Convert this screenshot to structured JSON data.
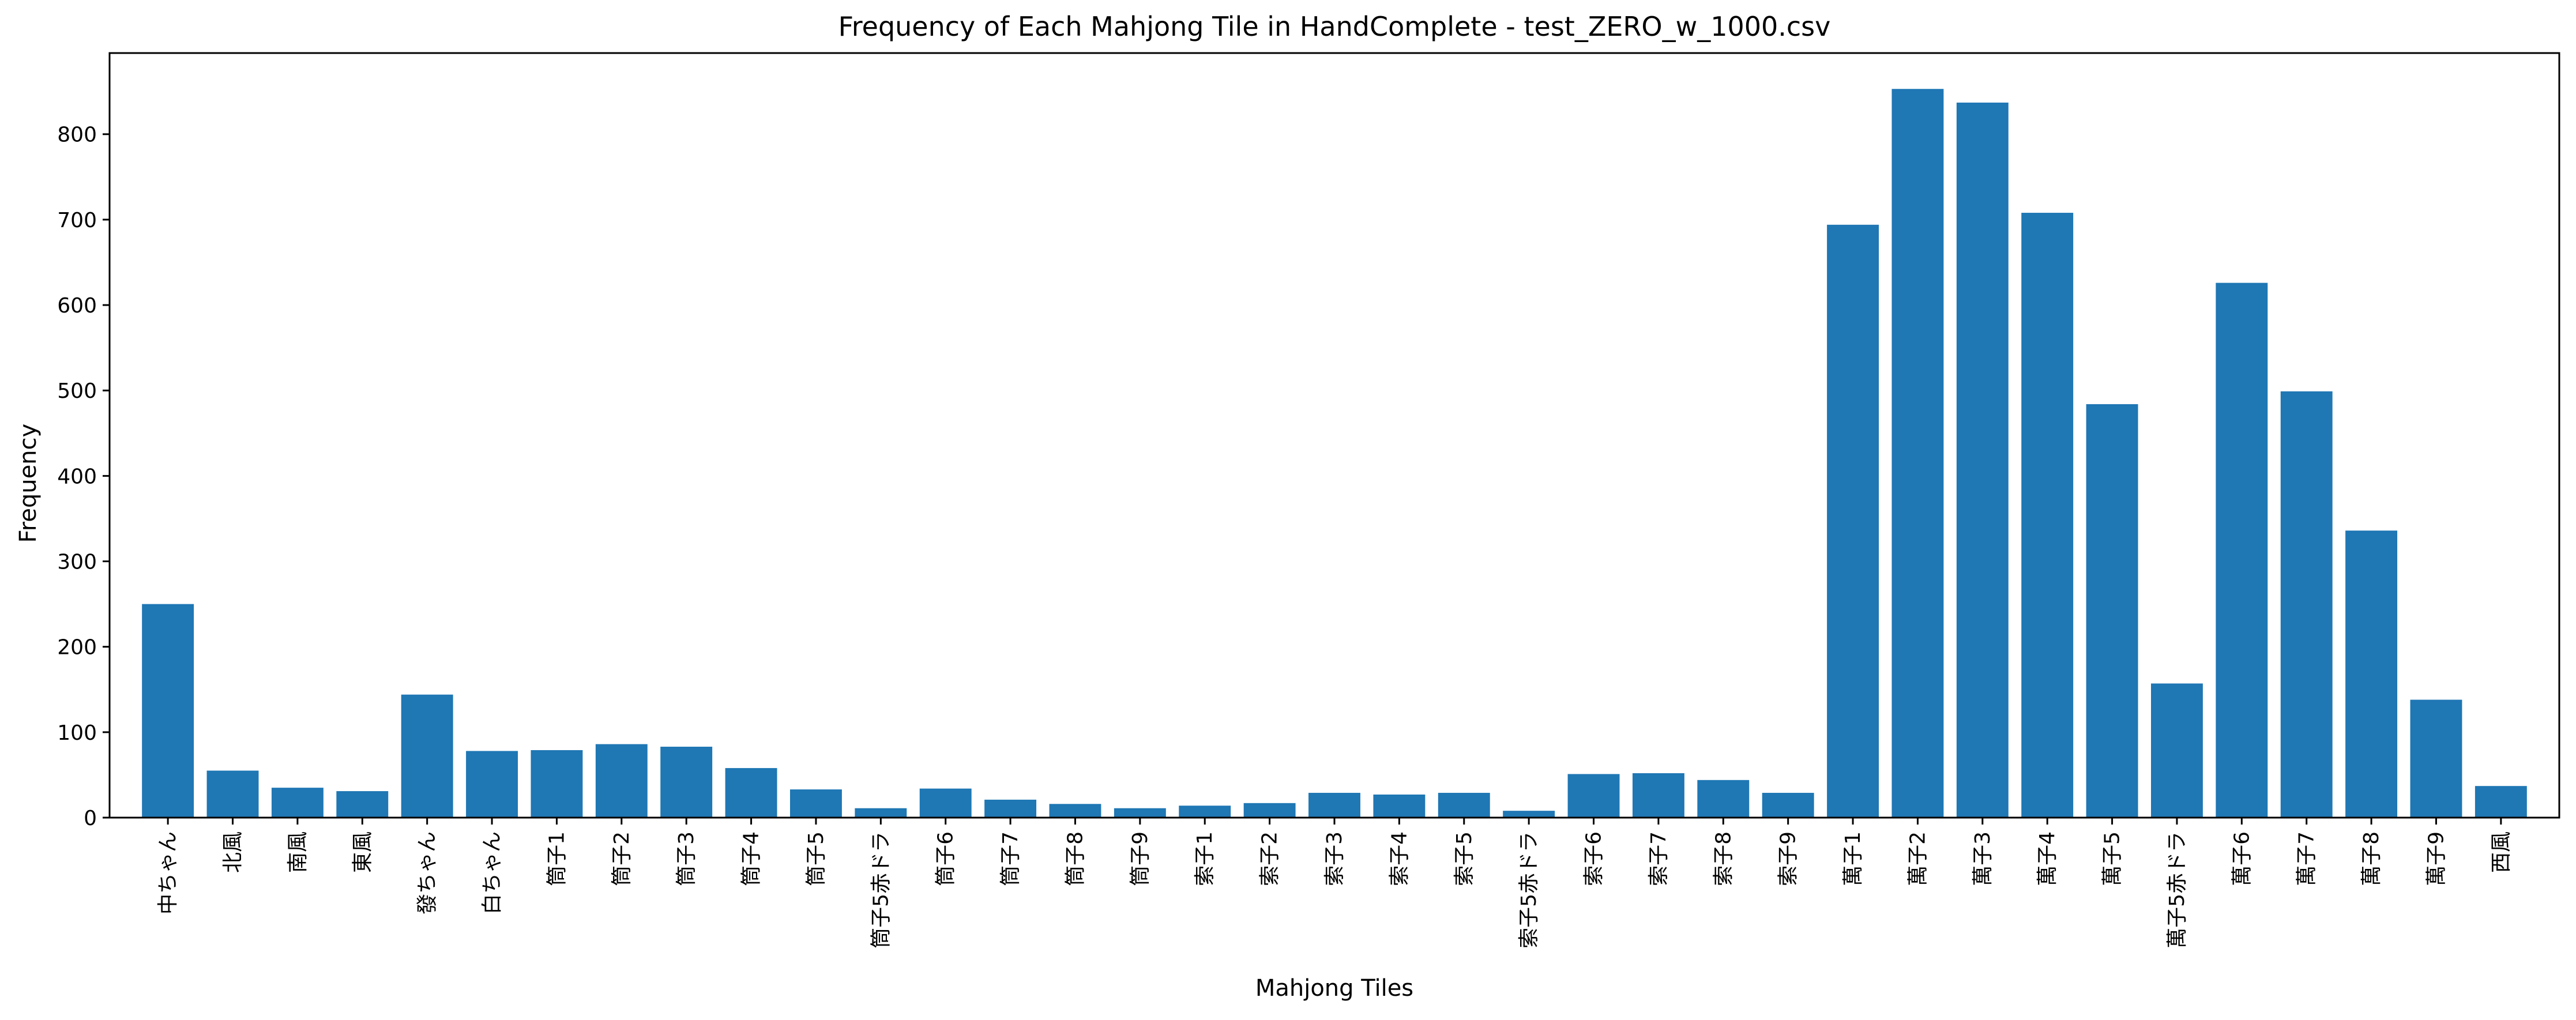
{
  "chart_data": {
    "type": "bar",
    "title": "Frequency of Each Mahjong Tile in HandComplete - test_ZERO_w_1000.csv",
    "xlabel": "Mahjong Tiles",
    "ylabel": "Frequency",
    "ylim": [
      0,
      895
    ],
    "yticks": [
      0,
      100,
      200,
      300,
      400,
      500,
      600,
      700,
      800
    ],
    "grid": false,
    "bar_color": "#1f77b4",
    "categories": [
      "中ちゃん",
      "北風",
      "南風",
      "東風",
      "發ちゃん",
      "白ちゃん",
      "筒子1",
      "筒子2",
      "筒子3",
      "筒子4",
      "筒子5",
      "筒子5赤ドラ",
      "筒子6",
      "筒子7",
      "筒子8",
      "筒子9",
      "索子1",
      "索子2",
      "索子3",
      "索子4",
      "索子5",
      "索子5赤ドラ",
      "索子6",
      "索子7",
      "索子8",
      "索子9",
      "萬子1",
      "萬子2",
      "萬子3",
      "萬子4",
      "萬子5",
      "萬子5赤ドラ",
      "萬子6",
      "萬子7",
      "萬子8",
      "萬子9",
      "西風"
    ],
    "values": [
      250,
      55,
      35,
      31,
      144,
      78,
      79,
      86,
      83,
      58,
      33,
      11,
      34,
      21,
      16,
      11,
      14,
      17,
      29,
      27,
      29,
      8,
      51,
      52,
      44,
      29,
      694,
      853,
      837,
      708,
      484,
      157,
      626,
      499,
      336,
      138,
      37
    ]
  }
}
